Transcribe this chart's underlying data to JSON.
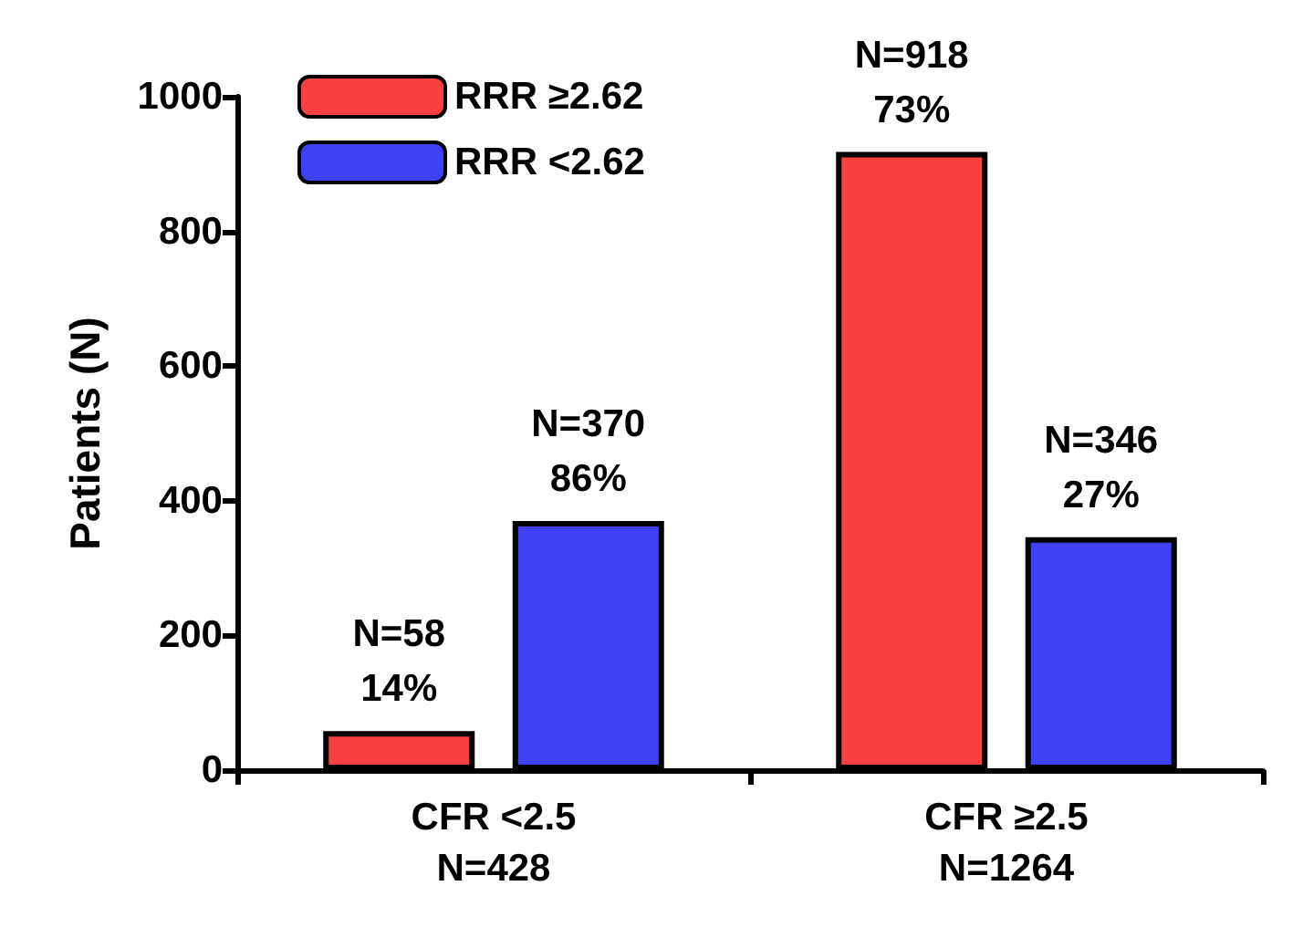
{
  "chart_data": {
    "type": "bar",
    "ylabel": "Patients (N)",
    "categories": [
      "CFR <2.5\nN=428",
      "CFR ≥2.5\nN=1264"
    ],
    "series": [
      {
        "name": "RRR ≥2.62",
        "color": "#fa4040",
        "values": [
          58,
          918
        ],
        "value_labels": [
          "N=58\n14%",
          "N=918\n73%"
        ]
      },
      {
        "name": "RRR <2.62",
        "color": "#4040f5",
        "values": [
          370,
          346
        ],
        "value_labels": [
          "N=370\n86%",
          "N=346\n27%"
        ]
      }
    ],
    "ylim": [
      0,
      1000
    ],
    "yticks": [
      0,
      200,
      400,
      600,
      800,
      1000
    ],
    "grid": false,
    "legend": "top left"
  }
}
